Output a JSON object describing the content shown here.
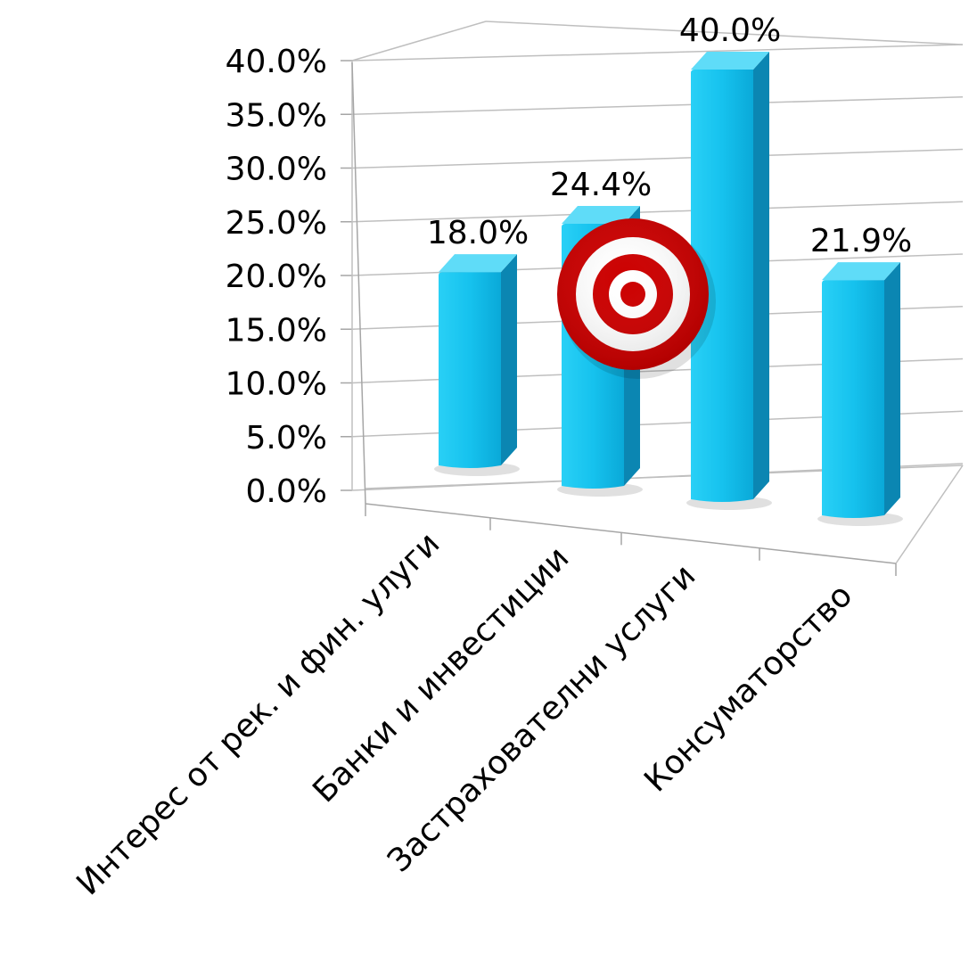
{
  "chart_data": {
    "type": "bar",
    "categories": [
      "Интерес от рек. и фин. улуги",
      "Банки и инвестиции",
      "Застрахователни услуги",
      "Консуматорство"
    ],
    "values": [
      18.0,
      24.4,
      40.0,
      21.9
    ],
    "data_labels": [
      "18.0%",
      "24.4%",
      "40.0%",
      "21.9%"
    ],
    "y_ticks": [
      "0.0%",
      "5.0%",
      "10.0%",
      "15.0%",
      "20.0%",
      "25.0%",
      "30.0%",
      "35.0%",
      "40.0%"
    ],
    "ylim": [
      0,
      40
    ],
    "grid": true,
    "bar_color": "#1ec8f0",
    "legend": "none",
    "style": "3d-column"
  },
  "icons": {
    "overlay": "target-icon",
    "target_red": "#cc0000",
    "target_white": "#ffffff"
  }
}
